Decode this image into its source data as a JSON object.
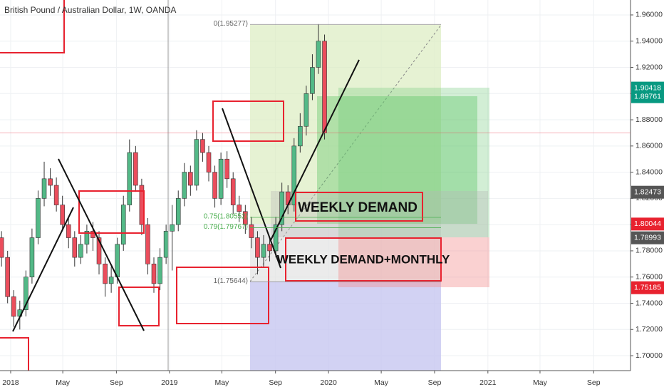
{
  "chart_data": {
    "type": "candlestick",
    "title": "British Pound / Australian Dollar, 1W, OANDA",
    "up_color": "#53b987",
    "down_color": "#eb4d5c",
    "x": [
      -3,
      -1,
      1,
      3,
      5,
      7,
      9,
      11,
      13,
      15,
      17,
      19,
      21,
      23,
      25,
      27,
      29,
      31,
      33,
      35,
      37,
      39,
      41,
      43,
      45,
      47,
      49,
      51,
      53,
      55,
      57,
      59,
      61,
      63,
      65,
      67,
      69,
      71,
      73,
      75,
      77,
      79,
      81,
      83,
      85,
      87,
      89,
      91,
      93,
      95,
      97,
      99,
      101,
      103
    ],
    "open": [
      1.79,
      1.775,
      1.745,
      1.73,
      1.735,
      1.76,
      1.79,
      1.82,
      1.835,
      1.83,
      1.815,
      1.8,
      1.79,
      1.775,
      1.785,
      1.795,
      1.79,
      1.77,
      1.755,
      1.76,
      1.785,
      1.815,
      1.855,
      1.83,
      1.8,
      1.77,
      1.755,
      1.775,
      1.795,
      1.8,
      1.82,
      1.84,
      1.83,
      1.865,
      1.855,
      1.84,
      1.82,
      1.85,
      1.835,
      1.815,
      1.81,
      1.8,
      1.79,
      1.775,
      1.785,
      1.78,
      1.8,
      1.825,
      1.815,
      1.86,
      1.875,
      1.9,
      1.92,
      1.94
    ],
    "high": [
      1.795,
      1.78,
      1.75,
      1.742,
      1.765,
      1.797,
      1.826,
      1.848,
      1.843,
      1.836,
      1.822,
      1.806,
      1.795,
      1.792,
      1.8,
      1.802,
      1.795,
      1.775,
      1.768,
      1.79,
      1.822,
      1.865,
      1.86,
      1.835,
      1.805,
      1.775,
      1.782,
      1.8,
      1.815,
      1.826,
      1.847,
      1.845,
      1.872,
      1.87,
      1.86,
      1.845,
      1.855,
      1.856,
      1.84,
      1.822,
      1.815,
      1.806,
      1.795,
      1.792,
      1.79,
      1.806,
      1.832,
      1.83,
      1.866,
      1.885,
      1.906,
      1.93,
      1.953,
      1.945
    ],
    "low": [
      1.768,
      1.74,
      1.722,
      1.72,
      1.73,
      1.755,
      1.785,
      1.814,
      1.822,
      1.81,
      1.795,
      1.782,
      1.768,
      1.77,
      1.778,
      1.78,
      1.762,
      1.745,
      1.748,
      1.755,
      1.78,
      1.81,
      1.825,
      1.792,
      1.762,
      1.748,
      1.75,
      1.77,
      1.765,
      1.795,
      1.814,
      1.822,
      1.826,
      1.848,
      1.833,
      1.813,
      1.815,
      1.828,
      1.808,
      1.802,
      1.793,
      1.782,
      1.762,
      1.768,
      1.772,
      1.775,
      1.795,
      1.808,
      1.81,
      1.855,
      1.868,
      1.895,
      1.915,
      1.865
    ],
    "close": [
      1.775,
      1.745,
      1.73,
      1.735,
      1.76,
      1.79,
      1.82,
      1.835,
      1.83,
      1.815,
      1.8,
      1.79,
      1.775,
      1.785,
      1.795,
      1.79,
      1.77,
      1.755,
      1.76,
      1.785,
      1.815,
      1.855,
      1.83,
      1.8,
      1.77,
      1.755,
      1.775,
      1.795,
      1.8,
      1.82,
      1.84,
      1.83,
      1.865,
      1.855,
      1.84,
      1.82,
      1.85,
      1.835,
      1.815,
      1.81,
      1.8,
      1.79,
      1.775,
      1.785,
      1.78,
      1.8,
      1.825,
      1.815,
      1.86,
      1.875,
      1.9,
      1.92,
      1.94,
      1.87
    ],
    "xlim": [
      -3.5,
      203.4
    ],
    "xticks": [
      {
        "value": 0,
        "label": "2018"
      },
      {
        "value": 17.1,
        "label": "May"
      },
      {
        "value": 34.7,
        "label": "Sep"
      },
      {
        "value": 52.1,
        "label": "2019"
      },
      {
        "value": 69.3,
        "label": "May"
      },
      {
        "value": 86.9,
        "label": "Sep"
      },
      {
        "value": 104.3,
        "label": "2020"
      },
      {
        "value": 121.6,
        "label": "May"
      },
      {
        "value": 139.1,
        "label": "Sep"
      },
      {
        "value": 156.6,
        "label": "2021"
      },
      {
        "value": 173.7,
        "label": "May"
      },
      {
        "value": 191.3,
        "label": "Sep"
      }
    ],
    "ylim": [
      1.6886,
      1.9714
    ],
    "yticks": [
      {
        "value": 1.7,
        "label": "1.70000"
      },
      {
        "value": 1.72,
        "label": "1.72000"
      },
      {
        "value": 1.74,
        "label": "1.74000"
      },
      {
        "value": 1.76,
        "label": "1.76000"
      },
      {
        "value": 1.78,
        "label": "1.78000"
      },
      {
        "value": 1.8,
        "label": "1.80000"
      },
      {
        "value": 1.82,
        "label": "1.82000"
      },
      {
        "value": 1.84,
        "label": "1.84000"
      },
      {
        "value": 1.86,
        "label": "1.86000"
      },
      {
        "value": 1.88,
        "label": "1.88000"
      },
      {
        "value": 1.9,
        "label": "1.90000"
      },
      {
        "value": 1.92,
        "label": "1.92000"
      },
      {
        "value": 1.94,
        "label": "1.94000"
      },
      {
        "value": 1.96,
        "label": "1.96000"
      }
    ],
    "grid": true,
    "price_labels": [
      {
        "value": 1.90418,
        "color": "#089981"
      },
      {
        "value": 1.89761,
        "color": "#089981"
      },
      {
        "value": 1.82473,
        "color": "#555555"
      },
      {
        "value": 1.80044,
        "color": "#e8222f"
      },
      {
        "value": 1.78993,
        "color": "#555555"
      },
      {
        "value": 1.75185,
        "color": "#e8222f"
      }
    ],
    "fib_levels": [
      {
        "label": "0(1.95277)",
        "value": 1.95277
      },
      {
        "label": "0.75(1.80552)",
        "value": 1.80552
      },
      {
        "label": "0.79(1.79767)",
        "value": 1.79767
      },
      {
        "label": "1(1.75644)",
        "value": 1.75644
      }
    ],
    "annotations": [
      "WEEKLY DEMAND",
      "WEEKLY DEMAND+MONTHLY"
    ]
  }
}
